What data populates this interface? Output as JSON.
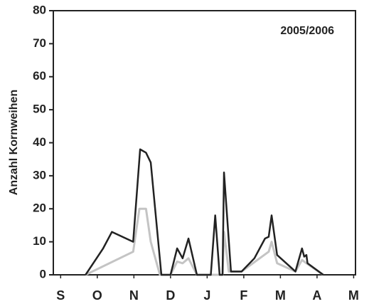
{
  "chart_data": {
    "type": "line",
    "annotation": "2005/2006",
    "y_label": "Anzahl Kornweihen",
    "xlim": [
      -0.2,
      8.05
    ],
    "xticks": [
      {
        "value": 0,
        "label": "S"
      },
      {
        "value": 1,
        "label": "O"
      },
      {
        "value": 2,
        "label": "N"
      },
      {
        "value": 3,
        "label": "D"
      },
      {
        "value": 4,
        "label": "J"
      },
      {
        "value": 5,
        "label": "F"
      },
      {
        "value": 6,
        "label": "M"
      },
      {
        "value": 7,
        "label": "A"
      },
      {
        "value": 8,
        "label": "M"
      }
    ],
    "ylim": [
      0,
      80
    ],
    "yticks": [
      0,
      10,
      20,
      30,
      40,
      50,
      60,
      70,
      80
    ],
    "series": [
      {
        "color": "#c4c4c4",
        "x": [
          0.68,
          1.98,
          2.15,
          2.33,
          2.46,
          2.71,
          3.0,
          3.18,
          3.33,
          3.49,
          3.72,
          4.1,
          4.42,
          4.46,
          4.59,
          4.94,
          5.68,
          5.76,
          5.91,
          6.41,
          6.59,
          6.71,
          7.17
        ],
        "values": [
          0,
          7,
          20,
          20,
          10,
          0,
          0,
          4,
          3.5,
          5,
          0,
          0,
          0,
          13,
          1,
          1,
          7,
          10,
          3.5,
          1,
          4.5,
          3.5,
          0
        ]
      },
      {
        "color": "#222222",
        "x": [
          0.68,
          1.16,
          1.4,
          1.98,
          2.17,
          2.33,
          2.46,
          2.75,
          3.0,
          3.18,
          3.33,
          3.49,
          3.72,
          4.1,
          4.22,
          4.34,
          4.42,
          4.46,
          4.65,
          4.94,
          5.29,
          5.58,
          5.68,
          5.76,
          5.91,
          6.41,
          6.59,
          6.65,
          6.71,
          6.74,
          7.17
        ],
        "values": [
          0,
          8,
          13,
          10,
          38,
          37,
          34,
          0,
          0,
          8,
          5,
          11,
          0,
          0,
          18,
          0,
          0,
          31,
          1,
          1,
          5,
          11,
          11.5,
          18,
          6,
          1,
          8,
          5.5,
          6,
          3.5,
          0
        ]
      }
    ]
  }
}
